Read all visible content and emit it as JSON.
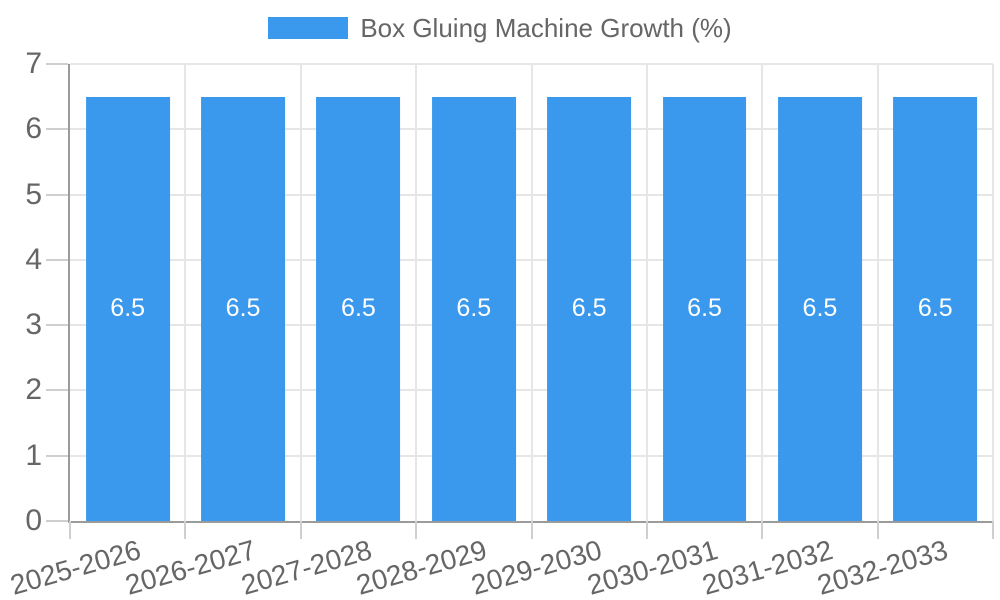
{
  "legend": {
    "label": "Box Gluing Machine Growth (%)"
  },
  "chart_data": {
    "type": "bar",
    "title": "Box Gluing Machine Growth (%)",
    "categories": [
      "2025-2026",
      "2026-2027",
      "2027-2028",
      "2028-2029",
      "2029-2030",
      "2030-2031",
      "2031-2032",
      "2032-2033"
    ],
    "values": [
      6.5,
      6.5,
      6.5,
      6.5,
      6.5,
      6.5,
      6.5,
      6.5
    ],
    "bar_labels": [
      "6.5",
      "6.5",
      "6.5",
      "6.5",
      "6.5",
      "6.5",
      "6.5",
      "6.5"
    ],
    "xlabel": "",
    "ylabel": "",
    "ylim": [
      0,
      7
    ],
    "yticks": [
      0,
      1,
      2,
      3,
      4,
      5,
      6,
      7
    ],
    "grid": true,
    "legend_position": "top",
    "x_label_rotation_deg": -16,
    "colors": {
      "bar": "#3a99ec",
      "bar_label": "#ffffff",
      "grid": "#e6e6e6",
      "axis": "#9b9b9b",
      "tick": "#cfcfcf",
      "text": "#666666",
      "background": "#ffffff"
    }
  }
}
